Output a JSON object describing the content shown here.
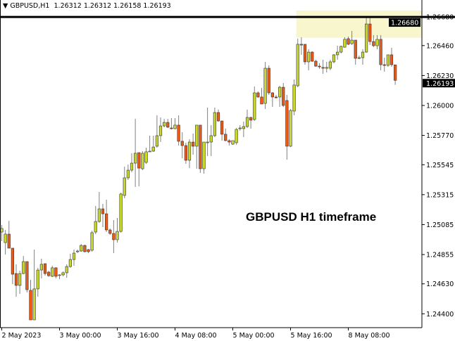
{
  "header": {
    "collapse_icon": "triangle-down-icon",
    "symbol": "GBPUSD,H1",
    "ohlc": "1.26312 1.26312 1.26158 1.26193"
  },
  "annotation": "GBPUSD H1 timeframe",
  "colors": {
    "bull": "#c9d92a",
    "bear": "#ee5a14",
    "wick": "#808080",
    "outline": "#333333",
    "zone": "#f8f6cc",
    "level_line": "#000000"
  },
  "chart_data": {
    "type": "candlestick",
    "title": "GBPUSD,H1",
    "timeframe": "H1",
    "ylim": [
      1.2432,
      1.2695
    ],
    "grid": false,
    "y_ticks": [
      "1.26680",
      "1.26460",
      "1.26230",
      "1.26000",
      "1.25770",
      "1.25545",
      "1.25315",
      "1.25085",
      "1.24855",
      "1.24630",
      "1.24400"
    ],
    "x_ticks": [
      {
        "label": "2 May 2023",
        "bar": 0
      },
      {
        "label": "3 May 00:00",
        "bar": 16
      },
      {
        "label": "3 May 16:00",
        "bar": 32
      },
      {
        "label": "4 May 08:00",
        "bar": 48
      },
      {
        "label": "5 May 00:00",
        "bar": 64
      },
      {
        "label": "5 May 16:00",
        "bar": 80
      },
      {
        "label": "8 May 08:00",
        "bar": 96
      }
    ],
    "horizontal_level": {
      "price": 1.2668,
      "label": "1.26680"
    },
    "resistance_zone": {
      "from_bar": 82,
      "to": "right-edge",
      "low": 1.2652,
      "high": 1.2673
    },
    "current_price": {
      "price": 1.26193,
      "label": "1.26193"
    },
    "candles_ohlc": [
      [
        1.25028,
        1.25082,
        1.24958,
        1.25055
      ],
      [
        1.24947,
        1.25044,
        1.24855,
        1.25012
      ],
      [
        1.25012,
        1.25114,
        1.24904,
        1.24904
      ],
      [
        1.24904,
        1.24904,
        1.24628,
        1.24704
      ],
      [
        1.24709,
        1.2478,
        1.24531,
        1.24618
      ],
      [
        1.24618,
        1.24731,
        1.24553,
        1.24709
      ],
      [
        1.24709,
        1.24844,
        1.24704,
        1.24801
      ],
      [
        1.24801,
        1.24801,
        1.24564,
        1.24585
      ],
      [
        1.2458,
        1.24661,
        1.24353,
        1.24353
      ],
      [
        1.24353,
        1.24893,
        1.24353,
        1.24591
      ],
      [
        1.24591,
        1.24753,
        1.24531,
        1.24736
      ],
      [
        1.24736,
        1.24823,
        1.24672,
        1.2478
      ],
      [
        1.24785,
        1.24785,
        1.24693,
        1.24709
      ],
      [
        1.2472,
        1.24731,
        1.24682,
        1.24693
      ],
      [
        1.24688,
        1.24769,
        1.24682,
        1.24753
      ],
      [
        1.24753,
        1.24758,
        1.24672,
        1.24688
      ],
      [
        1.24699,
        1.24704,
        1.24666,
        1.24699
      ],
      [
        1.24699,
        1.24726,
        1.24688,
        1.24715
      ],
      [
        1.24715,
        1.2478,
        1.24677,
        1.24763
      ],
      [
        1.24763,
        1.24861,
        1.24753,
        1.24817
      ],
      [
        1.24817,
        1.24893,
        1.24769,
        1.24866
      ],
      [
        1.24877,
        1.24893,
        1.24866,
        1.24882
      ],
      [
        1.24882,
        1.24936,
        1.24877,
        1.24925
      ],
      [
        1.24925,
        1.24931,
        1.24871,
        1.24877
      ],
      [
        1.24893,
        1.24898,
        1.24866,
        1.24877
      ],
      [
        1.24888,
        1.25039,
        1.24877,
        1.25023
      ],
      [
        1.25028,
        1.25228,
        1.25012,
        1.25109
      ],
      [
        1.25109,
        1.25336,
        1.25098,
        1.25206
      ],
      [
        1.25206,
        1.25244,
        1.25066,
        1.25168
      ],
      [
        1.25168,
        1.25276,
        1.25028,
        1.25044
      ],
      [
        1.25044,
        1.25055,
        1.25006,
        1.25017
      ],
      [
        1.25017,
        1.2512,
        1.24866,
        1.24969
      ],
      [
        1.24969,
        1.25136,
        1.24947,
        1.25033
      ],
      [
        1.25033,
        1.2533,
        1.25023,
        1.2532
      ],
      [
        1.25309,
        1.2553,
        1.25287,
        1.25444
      ],
      [
        1.25444,
        1.25546,
        1.25428,
        1.25503
      ],
      [
        1.25503,
        1.25633,
        1.25487,
        1.25557
      ],
      [
        1.25557,
        1.25897,
        1.25374,
        1.25633
      ],
      [
        1.25638,
        1.25638,
        1.25379,
        1.25519
      ],
      [
        1.25514,
        1.25649,
        1.25503,
        1.25633
      ],
      [
        1.25563,
        1.25676,
        1.25552,
        1.25644
      ],
      [
        1.25649,
        1.25768,
        1.25644,
        1.25649
      ],
      [
        1.25649,
        1.25768,
        1.25644,
        1.25681
      ],
      [
        1.25687,
        1.25924,
        1.25676,
        1.25768
      ],
      [
        1.25768,
        1.25908,
        1.25719,
        1.25843
      ],
      [
        1.25843,
        1.25897,
        1.25833,
        1.2587
      ],
      [
        1.2587,
        1.25897,
        1.25827,
        1.25833
      ],
      [
        1.25827,
        1.25903,
        1.25816,
        1.25822
      ],
      [
        1.25822,
        1.25903,
        1.25816,
        1.25849
      ],
      [
        1.25849,
        1.25924,
        1.25692,
        1.25725
      ],
      [
        1.25725,
        1.25795,
        1.25595,
        1.25692
      ],
      [
        1.25692,
        1.25714,
        1.25552,
        1.25579
      ],
      [
        1.25579,
        1.25741,
        1.25519,
        1.25719
      ],
      [
        1.25719,
        1.25784,
        1.25622,
        1.25687
      ],
      [
        1.25687,
        1.25849,
        1.25514,
        1.25849
      ],
      [
        1.25849,
        1.25849,
        1.25482,
        1.25514
      ],
      [
        1.25514,
        1.25719,
        1.25476,
        1.25719
      ],
      [
        1.25719,
        1.25984,
        1.25611,
        1.25719
      ],
      [
        1.25719,
        1.25849,
        1.25611,
        1.25768
      ],
      [
        1.25768,
        1.25984,
        1.25757,
        1.25946
      ],
      [
        1.25946,
        1.25968,
        1.25876,
        1.25881
      ],
      [
        1.25881,
        1.25881,
        1.2573,
        1.25779
      ],
      [
        1.25779,
        1.25822,
        1.25725,
        1.2573
      ],
      [
        1.2573,
        1.25741,
        1.25692,
        1.25719
      ],
      [
        1.25703,
        1.2573,
        1.25698,
        1.2573
      ],
      [
        1.25714,
        1.25827,
        1.25698,
        1.25816
      ],
      [
        1.25822,
        1.25849,
        1.25806,
        1.25827
      ],
      [
        1.25822,
        1.25876,
        1.25757,
        1.25838
      ],
      [
        1.25838,
        1.25968,
        1.25827,
        1.25908
      ],
      [
        1.25908,
        1.25914,
        1.25822,
        1.25887
      ],
      [
        1.25892,
        1.26146,
        1.25881,
        1.26097
      ],
      [
        1.26097,
        1.26108,
        1.26059,
        1.26065
      ],
      [
        1.26065,
        1.26135,
        1.26011,
        1.26011
      ],
      [
        1.26016,
        1.26335,
        1.25973,
        1.26286
      ],
      [
        1.26286,
        1.26308,
        1.26081,
        1.26097
      ],
      [
        1.26097,
        1.26103,
        1.25989,
        1.26065
      ],
      [
        1.26065,
        1.26081,
        1.26054,
        1.26059
      ],
      [
        1.26065,
        1.26151,
        1.25989,
        1.2614
      ],
      [
        1.2614,
        1.26173,
        1.25989,
        1.26
      ],
      [
        1.26038,
        1.26081,
        1.25584,
        1.25687
      ],
      [
        1.25687,
        1.25973,
        1.25681,
        1.25962
      ],
      [
        1.25957,
        1.262,
        1.25924,
        1.26157
      ],
      [
        1.26151,
        1.26513,
        1.2614,
        1.2647
      ],
      [
        1.2647,
        1.26524,
        1.26389,
        1.26464
      ],
      [
        1.2647,
        1.2647,
        1.26313,
        1.26335
      ],
      [
        1.26335,
        1.26432,
        1.2627,
        1.2641
      ],
      [
        1.2641,
        1.26416,
        1.26335,
        1.2634
      ],
      [
        1.2634,
        1.26351,
        1.26297,
        1.26302
      ],
      [
        1.26302,
        1.26324,
        1.26281,
        1.26297
      ],
      [
        1.26292,
        1.26351,
        1.26243,
        1.26286
      ],
      [
        1.26286,
        1.26335,
        1.26254,
        1.26292
      ],
      [
        1.26286,
        1.26351,
        1.2627,
        1.26335
      ],
      [
        1.26335,
        1.26394,
        1.26324,
        1.26389
      ],
      [
        1.26389,
        1.26459,
        1.26351,
        1.2641
      ],
      [
        1.2641,
        1.26459,
        1.264,
        1.26454
      ],
      [
        1.26448,
        1.26524,
        1.26443,
        1.26508
      ],
      [
        1.26513,
        1.26529,
        1.26464,
        1.2647
      ],
      [
        1.26475,
        1.26572,
        1.26464,
        1.26502
      ],
      [
        1.26502,
        1.26502,
        1.26313,
        1.26362
      ],
      [
        1.26367,
        1.26383,
        1.26356,
        1.26367
      ],
      [
        1.26367,
        1.26432,
        1.26313,
        1.2641
      ],
      [
        1.2641,
        1.26675,
        1.26405,
        1.26626
      ],
      [
        1.26626,
        1.26675,
        1.26464,
        1.26491
      ],
      [
        1.26491,
        1.2654,
        1.26448,
        1.26459
      ],
      [
        1.26459,
        1.2654,
        1.26432,
        1.26508
      ],
      [
        1.26508,
        1.2654,
        1.2627,
        1.26313
      ],
      [
        1.26313,
        1.26367,
        1.26259,
        1.26308
      ],
      [
        1.26308,
        1.26389,
        1.26297,
        1.26389
      ],
      [
        1.26389,
        1.26443,
        1.26297,
        1.26313
      ],
      [
        1.26312,
        1.26312,
        1.26158,
        1.26193
      ]
    ]
  }
}
